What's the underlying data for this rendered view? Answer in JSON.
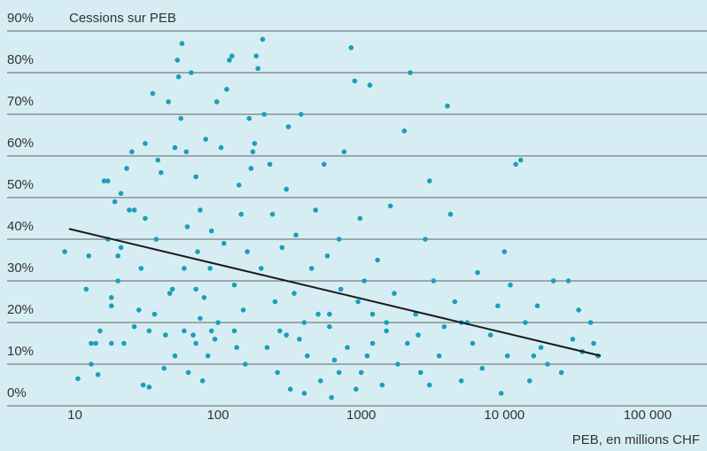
{
  "chart_data": {
    "type": "scatter",
    "y_axis_title": "Cessions sur PEB",
    "x_axis_title": "PEB, en millions CHF",
    "x_log": true,
    "grid": true,
    "color": "#1a9fba",
    "xlim": [
      3,
      260000
    ],
    "ylim": [
      0,
      90
    ],
    "xticks": [
      10,
      100,
      1000,
      {
        "value": 10000,
        "label": "10 000"
      },
      {
        "value": 100000,
        "label": "100 000"
      }
    ],
    "yticks": [
      {
        "value": 0,
        "label": "0%"
      },
      {
        "value": 10,
        "label": "10%"
      },
      {
        "value": 20,
        "label": "20%"
      },
      {
        "value": 30,
        "label": "30%"
      },
      {
        "value": 40,
        "label": "40%"
      },
      {
        "value": 50,
        "label": "50%"
      },
      {
        "value": 60,
        "label": "60%"
      },
      {
        "value": 70,
        "label": "70%"
      },
      {
        "value": 80,
        "label": "80%"
      },
      {
        "value": {
          "v": 90
        },
        "label": "90%"
      }
    ],
    "x": [
      8.5,
      10.5,
      12,
      12.5,
      13,
      13,
      14,
      14.5,
      15,
      16,
      17,
      17,
      18,
      18,
      18,
      19,
      20,
      20,
      21,
      21,
      22,
      23,
      24,
      25,
      26,
      26,
      28,
      29,
      30,
      31,
      31,
      33,
      33,
      35,
      36,
      37,
      38,
      40,
      42,
      43,
      45,
      46,
      48,
      50,
      50,
      52,
      53,
      55,
      56,
      58,
      58,
      60,
      61,
      62,
      65,
      67,
      70,
      70,
      72,
      75,
      75,
      78,
      80,
      82,
      85,
      88,
      90,
      95,
      98,
      100,
      105,
      110,
      115,
      120,
      125,
      130,
      135,
      140,
      145,
      150,
      155,
      160,
      165,
      170,
      175,
      180,
      185,
      190,
      200,
      205,
      210,
      220,
      230,
      240,
      250,
      260,
      270,
      280,
      300,
      310,
      320,
      340,
      350,
      370,
      380,
      400,
      420,
      450,
      480,
      500,
      520,
      550,
      580,
      600,
      620,
      650,
      700,
      720,
      760,
      800,
      850,
      900,
      920,
      950,
      980,
      1000,
      1050,
      1100,
      1150,
      1200,
      1300,
      1400,
      1500,
      1600,
      1700,
      1800,
      2000,
      2100,
      2200,
      2400,
      2600,
      2800,
      3000,
      3200,
      3500,
      3800,
      4000,
      4200,
      4500,
      5000,
      5500,
      6000,
      6500,
      7000,
      8000,
      9000,
      9500,
      10000,
      10500,
      11000,
      12000,
      13000,
      14000,
      15000,
      16000,
      17000,
      18000,
      20000,
      22000,
      25000,
      28000,
      30000,
      33000,
      35000,
      40000,
      42000,
      45000,
      130,
      90,
      70,
      300,
      400,
      600,
      1500,
      2500,
      5000,
      700,
      1200,
      3000
    ],
    "values": [
      37,
      6.5,
      28,
      36,
      15,
      10,
      15,
      7.5,
      18,
      54,
      54,
      40,
      15,
      24,
      26,
      49,
      30,
      36,
      38,
      51,
      15,
      57,
      47,
      61,
      47,
      19,
      23,
      33,
      5,
      63,
      45,
      18,
      4.5,
      75,
      22,
      40,
      59,
      56,
      9,
      17,
      73,
      27,
      28,
      12,
      62,
      83,
      79,
      69,
      87,
      18,
      33,
      61,
      43,
      8,
      80,
      17,
      28,
      55,
      37,
      21,
      47,
      6,
      26,
      64,
      12,
      33,
      42,
      16,
      73,
      20,
      62,
      39,
      76,
      83,
      84,
      29,
      14,
      53,
      46,
      23,
      10,
      37,
      69,
      57,
      61,
      63,
      84,
      81,
      33,
      88,
      70,
      14,
      58,
      46,
      25,
      8,
      18,
      38,
      52,
      67,
      4,
      27,
      41,
      16,
      70,
      3,
      12,
      33,
      47,
      22,
      6,
      58,
      36,
      19,
      2,
      11,
      40,
      28,
      61,
      14,
      86,
      78,
      4,
      25,
      45,
      8,
      30,
      12,
      77,
      22,
      35,
      5,
      18,
      48,
      27,
      10,
      66,
      15,
      80,
      22,
      8,
      40,
      54,
      30,
      12,
      19,
      72,
      46,
      25,
      6,
      20,
      15,
      32,
      9,
      17,
      24,
      3,
      37,
      12,
      29,
      58,
      59,
      20,
      6,
      12,
      24,
      14,
      10,
      30,
      8,
      30,
      16,
      23,
      13,
      20,
      15,
      12,
      18,
      18,
      15,
      17,
      20,
      22,
      20,
      17,
      20,
      8,
      15,
      5
    ],
    "trend_line": {
      "x": [
        9.1,
        47100
      ],
      "values": [
        42.5,
        12
      ],
      "color": "#1a1a1a"
    }
  }
}
